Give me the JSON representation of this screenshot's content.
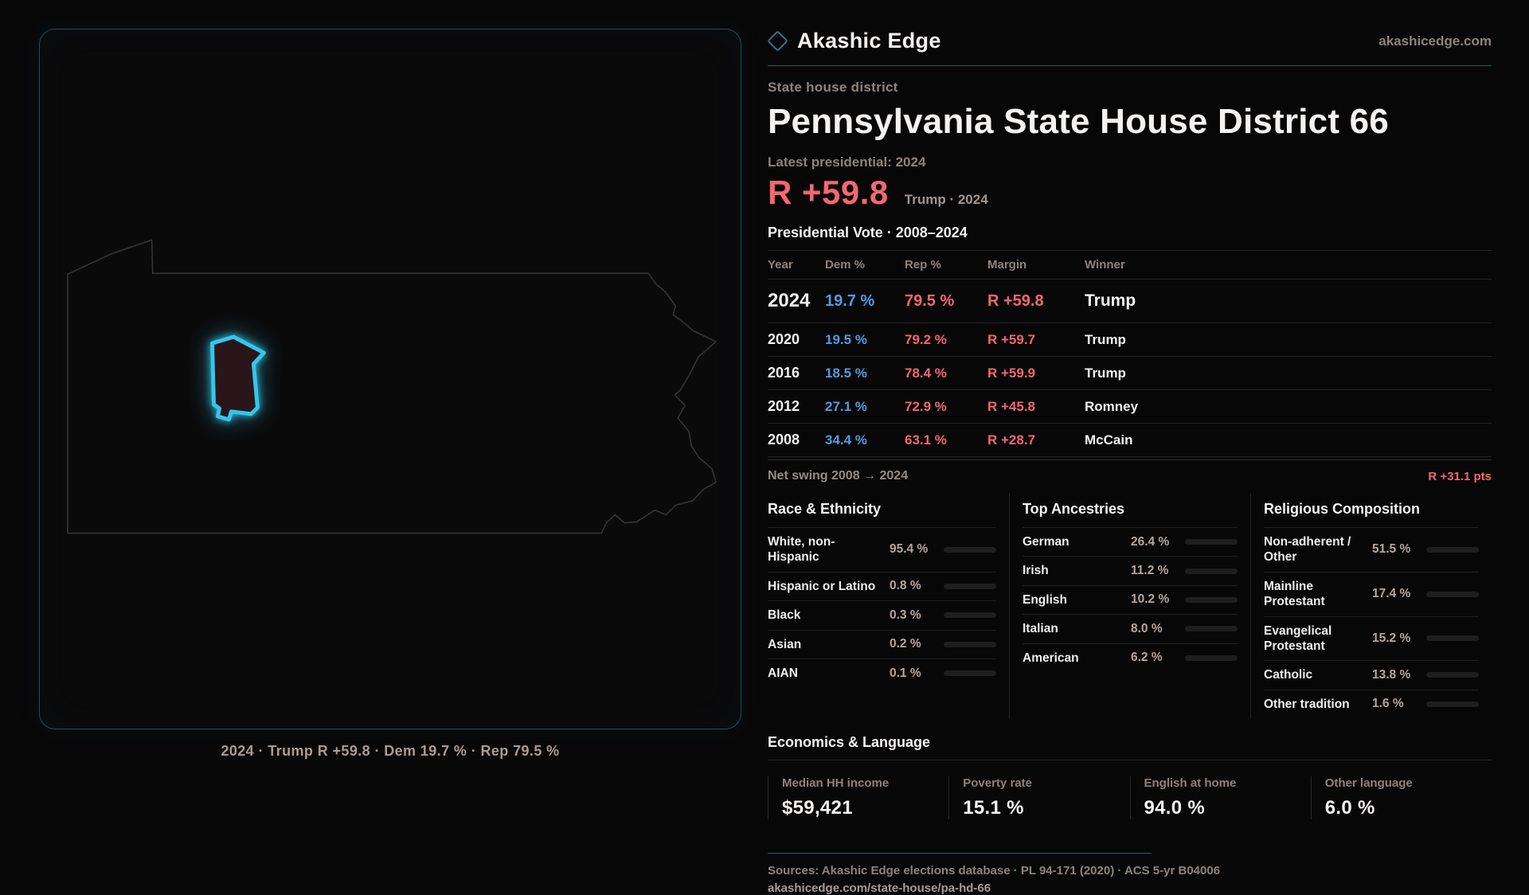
{
  "header": {
    "brand": "Akashic Edge",
    "site": "akashicedge.com"
  },
  "hero": {
    "kicker": "State house district",
    "title": "Pennsylvania State House District 66",
    "latest_label": "Latest presidential: 2024",
    "margin_value": "R +59.8",
    "margin_context": "Trump · 2024"
  },
  "vote_table": {
    "title": "Presidential Vote · 2008–2024",
    "headers": [
      "Year",
      "Dem %",
      "Rep %",
      "Margin",
      "Winner"
    ],
    "rows": [
      {
        "year": "2024",
        "dem": "19.7 %",
        "rep": "79.5 %",
        "margin": "R +59.8",
        "winner": "Trump",
        "featured": true
      },
      {
        "year": "2020",
        "dem": "19.5 %",
        "rep": "79.2 %",
        "margin": "R +59.7",
        "winner": "Trump"
      },
      {
        "year": "2016",
        "dem": "18.5 %",
        "rep": "78.4 %",
        "margin": "R +59.9",
        "winner": "Trump"
      },
      {
        "year": "2012",
        "dem": "27.1 %",
        "rep": "72.9 %",
        "margin": "R +45.8",
        "winner": "Romney"
      },
      {
        "year": "2008",
        "dem": "34.4 %",
        "rep": "63.1 %",
        "margin": "R +28.7",
        "winner": "McCain"
      }
    ]
  },
  "net_swing": {
    "label": "Net swing 2008 → 2024",
    "value": "R +31.1 pts"
  },
  "demographics": {
    "panels": [
      {
        "title": "Race & Ethnicity",
        "rows": [
          {
            "label": "White, non-Hispanic",
            "value": "95.4 %",
            "pct": 95.4,
            "color": "#a9bdd8"
          },
          {
            "label": "Hispanic or Latino",
            "value": "0.8 %",
            "pct": 0.8,
            "color": "#c8862e"
          },
          {
            "label": "Black",
            "value": "0.3 %",
            "pct": 0.3,
            "color": "#8a8a8a"
          },
          {
            "label": "Asian",
            "value": "0.2 %",
            "pct": 0.2,
            "color": "#8a8a8a"
          },
          {
            "label": "AIAN",
            "value": "0.1 %",
            "pct": 0.1,
            "color": "#8a8a8a"
          }
        ]
      },
      {
        "title": "Top Ancestries",
        "rows": [
          {
            "label": "German",
            "value": "26.4 %",
            "pct": 26.4,
            "color": "#9db3d2"
          },
          {
            "label": "Irish",
            "value": "11.2 %",
            "pct": 11.2,
            "color": "#9db3d2"
          },
          {
            "label": "English",
            "value": "10.2 %",
            "pct": 10.2,
            "color": "#9db3d2"
          },
          {
            "label": "Italian",
            "value": "8.0 %",
            "pct": 8.0,
            "color": "#9db3d2"
          },
          {
            "label": "American",
            "value": "6.2 %",
            "pct": 6.2,
            "color": "#9db3d2"
          }
        ]
      },
      {
        "title": "Religious Composition",
        "rows": [
          {
            "label": "Non-adherent / Other",
            "value": "51.5 %",
            "pct": 51.5,
            "color": "#6e7a8a"
          },
          {
            "label": "Mainline Protestant",
            "value": "17.4 %",
            "pct": 17.4,
            "color": "#4a90d9"
          },
          {
            "label": "Evangelical Protestant",
            "value": "15.2 %",
            "pct": 15.2,
            "color": "#e0696f"
          },
          {
            "label": "Catholic",
            "value": "13.8 %",
            "pct": 13.8,
            "color": "#e5b427"
          },
          {
            "label": "Other tradition",
            "value": "1.6 %",
            "pct": 1.6,
            "color": "#d9d9d9"
          }
        ]
      }
    ]
  },
  "economics": {
    "title": "Economics & Language",
    "stats": [
      {
        "label": "Median HH income",
        "value": "$59,421"
      },
      {
        "label": "Poverty rate",
        "value": "15.1 %"
      },
      {
        "label": "English at home",
        "value": "94.0 %"
      },
      {
        "label": "Other language",
        "value": "6.0 %"
      }
    ]
  },
  "map": {
    "caption": "2024 · Trump R +59.8 · Dem 19.7 % · Rep 79.5 %",
    "region": "Pennsylvania",
    "district_color": "#34c6ea"
  },
  "footer": {
    "sources": "Sources: Akashic Edge elections database · PL 94-171 (2020) · ACS 5-yr B04006",
    "permalink": "akashicedge.com/state-house/pa-hd-66"
  },
  "colors": {
    "accent_red": "#f2686e",
    "dem_blue": "#4f9ce0",
    "accent_teal": "#2b7488"
  }
}
